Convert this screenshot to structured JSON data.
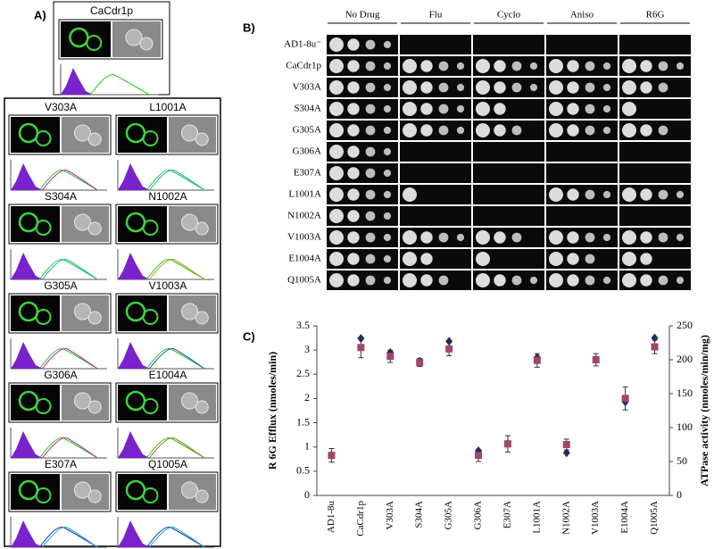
{
  "panel_a": {
    "label": "A)",
    "reference": "CaCdr1p",
    "mutants": [
      "V303A",
      "L1001A",
      "S304A",
      "N1002A",
      "G305A",
      "V1003A",
      "G306A",
      "E1004A",
      "E307A",
      "Q1005A"
    ]
  },
  "panel_b": {
    "label": "B)",
    "columns": [
      "No Drug",
      "Flu",
      "Cyclo",
      "Aniso",
      "R6G"
    ],
    "rows": [
      "AD1-8u⁻",
      "CaCdr1p",
      "V303A",
      "S304A",
      "G305A",
      "G306A",
      "E307A",
      "L1001A",
      "N1002A",
      "V1003A",
      "E1004A",
      "Q1005A"
    ]
  },
  "chart_data": {
    "type": "scatter",
    "label": "C)",
    "y_label": "R 6G Efflux (nmoles/min)",
    "y2_label": "ATPase activity (nmoles/min/mg)",
    "categories": [
      "AD1-8u",
      "CaCdr1p",
      "V303A",
      "S304A",
      "G305A",
      "G306A",
      "E307A",
      "L1001A",
      "N1002A",
      "V1003A",
      "E1004A",
      "Q1005A"
    ],
    "series": [
      {
        "color": "#1f2a6b",
        "marker": "diamond",
        "values": [
          0.83,
          3.24,
          2.95,
          2.77,
          3.18,
          0.92,
          1.07,
          2.85,
          0.88,
          2.8,
          1.93,
          3.25
        ]
      },
      {
        "color": "#a0466e",
        "marker": "square",
        "axis": "y2",
        "values": [
          59,
          218,
          205,
          196,
          216,
          59,
          76,
          199,
          75,
          200,
          143,
          219
        ],
        "errors": [
          10,
          15,
          9,
          6,
          10,
          9,
          12,
          10,
          8,
          9,
          17,
          10
        ]
      }
    ],
    "ylim": [
      0,
      3.5
    ],
    "yticks": [
      0,
      0.5,
      1,
      1.5,
      2,
      2.5,
      3,
      3.5
    ],
    "y2lim": [
      0,
      250
    ],
    "y2ticks": [
      0,
      50,
      100,
      150,
      200,
      250
    ]
  }
}
